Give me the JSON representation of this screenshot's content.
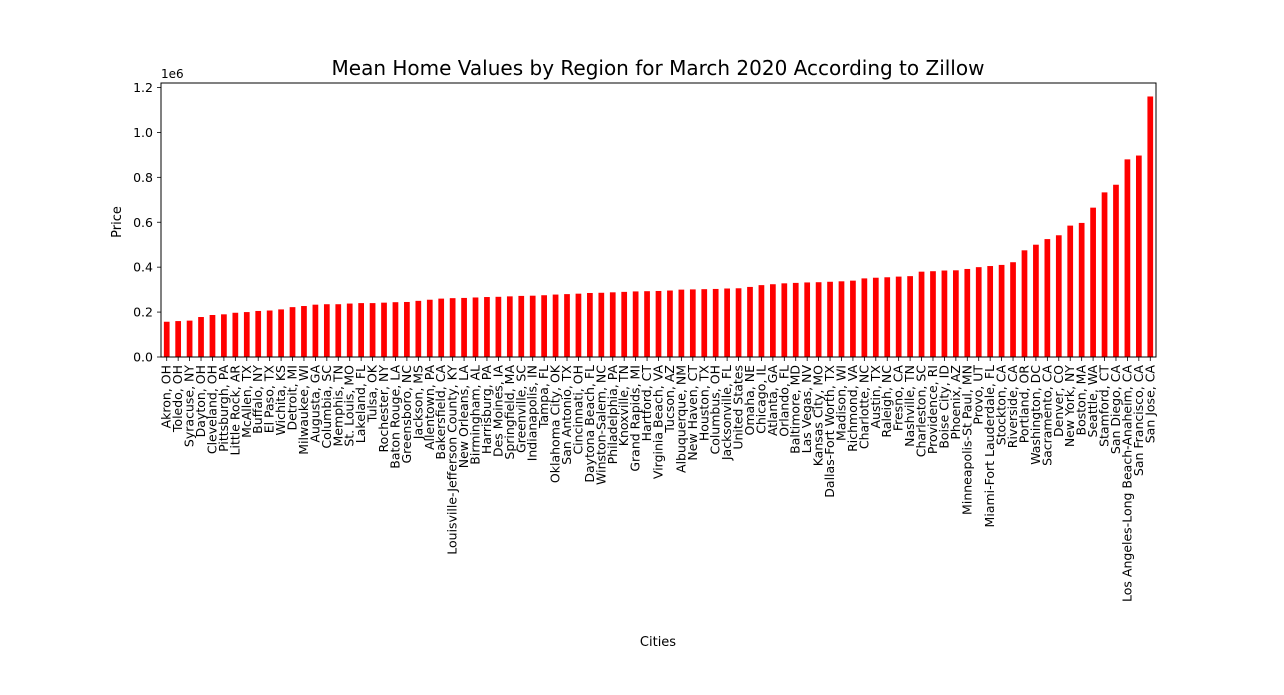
{
  "chart_data": {
    "type": "bar",
    "title": "Mean Home Values by Region for March 2020 According to Zillow",
    "xlabel": "Cities",
    "ylabel": "Price",
    "y_offset_label": "1e6",
    "ylim": [
      0,
      1220000
    ],
    "yticks": [
      0,
      200000,
      400000,
      600000,
      800000,
      1000000,
      1200000
    ],
    "ytick_labels": [
      "0.0",
      "0.2",
      "0.4",
      "0.6",
      "0.8",
      "1.0",
      "1.2"
    ],
    "grid": false,
    "legend": "none",
    "bar_color": "#ff0000",
    "categories": [
      "Akron, OH",
      "Toledo, OH",
      "Syracuse, NY",
      "Dayton, OH",
      "Cleveland, OH",
      "Pittsburgh, PA",
      "Little Rock, AR",
      "McAllen, TX",
      "Buffalo, NY",
      "El Paso, TX",
      "Wichita, KS",
      "Detroit, MI",
      "Milwaukee, WI",
      "Augusta, GA",
      "Columbia, SC",
      "Memphis, TN",
      "St. Louis, MO",
      "Lakeland, FL",
      "Tulsa, OK",
      "Rochester, NY",
      "Baton Rouge, LA",
      "Greensboro, NC",
      "Jackson, MS",
      "Allentown, PA",
      "Bakersfield, CA",
      "Louisville-Jefferson County, KY",
      "New Orleans, LA",
      "Birmingham, AL",
      "Harrisburg, PA",
      "Des Moines, IA",
      "Springfield, MA",
      "Greenville, SC",
      "Indianapolis, IN",
      "Tampa, FL",
      "Oklahoma City, OK",
      "San Antonio, TX",
      "Cincinnati, OH",
      "Daytona Beach, FL",
      "Winston-Salem, NC",
      "Philadelphia, PA",
      "Knoxville, TN",
      "Grand Rapids, MI",
      "Hartford, CT",
      "Virginia Beach, VA",
      "Tucson, AZ",
      "Albuquerque, NM",
      "New Haven, CT",
      "Houston, TX",
      "Columbus, OH",
      "Jacksonville, FL",
      "United States",
      "Omaha, NE",
      "Chicago, IL",
      "Atlanta, GA",
      "Orlando, FL",
      "Baltimore, MD",
      "Las Vegas, NV",
      "Kansas City, MO",
      "Dallas-Fort Worth, TX",
      "Madison, WI",
      "Richmond, VA",
      "Charlotte, NC",
      "Austin, TX",
      "Raleigh, NC",
      "Fresno, CA",
      "Nashville, TN",
      "Charleston, SC",
      "Providence, RI",
      "Boise City, ID",
      "Phoenix, AZ",
      "Minneapolis-St Paul, MN",
      "Provo, UT",
      "Miami-Fort Lauderdale, FL",
      "Stockton, CA",
      "Riverside, CA",
      "Portland, OR",
      "Washington, DC",
      "Sacramento, CA",
      "Denver, CO",
      "New York, NY",
      "Boston, MA",
      "Seattle, WA",
      "Stamford, CT",
      "San Diego, CA",
      "Los Angeles-Long Beach-Anaheim, CA",
      "San Francisco, CA",
      "San Jose, CA"
    ],
    "values": [
      157000,
      160000,
      162000,
      178000,
      187000,
      190000,
      197000,
      200000,
      205000,
      207000,
      212000,
      222000,
      227000,
      233000,
      235000,
      235000,
      238000,
      240000,
      240000,
      242000,
      244000,
      245000,
      250000,
      255000,
      260000,
      262000,
      263000,
      265000,
      267000,
      268000,
      270000,
      272000,
      273000,
      275000,
      278000,
      280000,
      282000,
      285000,
      286000,
      288000,
      290000,
      292000,
      293000,
      294000,
      296000,
      300000,
      301000,
      302000,
      303000,
      305000,
      306000,
      312000,
      320000,
      324000,
      328000,
      330000,
      332000,
      333000,
      335000,
      337000,
      340000,
      350000,
      353000,
      355000,
      358000,
      360000,
      380000,
      382000,
      385000,
      386000,
      392000,
      400000,
      405000,
      410000,
      422000,
      475000,
      500000,
      525000,
      542000,
      585000,
      597000,
      665000,
      733000,
      767000,
      880000,
      897000,
      1160000
    ]
  }
}
